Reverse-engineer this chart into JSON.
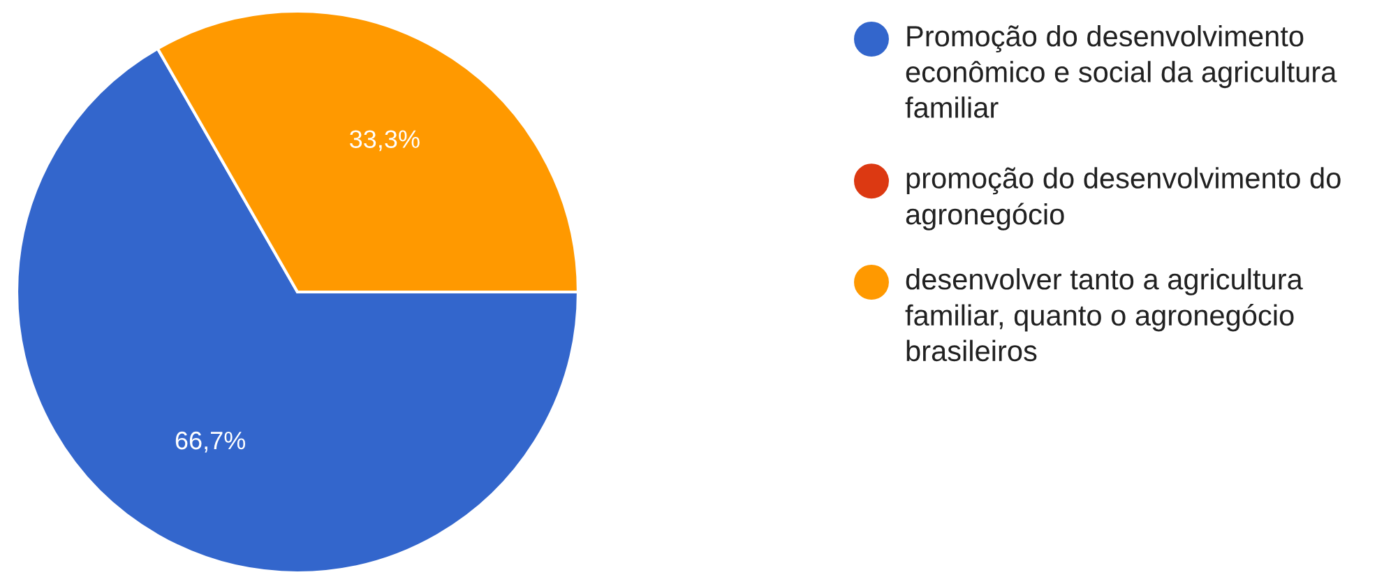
{
  "chart_data": {
    "type": "pie",
    "categories": [
      "Promoção do desenvolvimento econômico e social da agricultura familiar",
      "promoção do desenvolvimento do agronegócio",
      "desenvolver tanto a agricultura familiar, quanto o agronegócio brasileiros"
    ],
    "values": [
      66.7,
      0,
      33.3
    ],
    "colors": [
      "#3366cc",
      "#dc3912",
      "#ff9900"
    ],
    "value_labels": [
      "66,7%",
      null,
      "33,3%"
    ],
    "legend": "right"
  }
}
